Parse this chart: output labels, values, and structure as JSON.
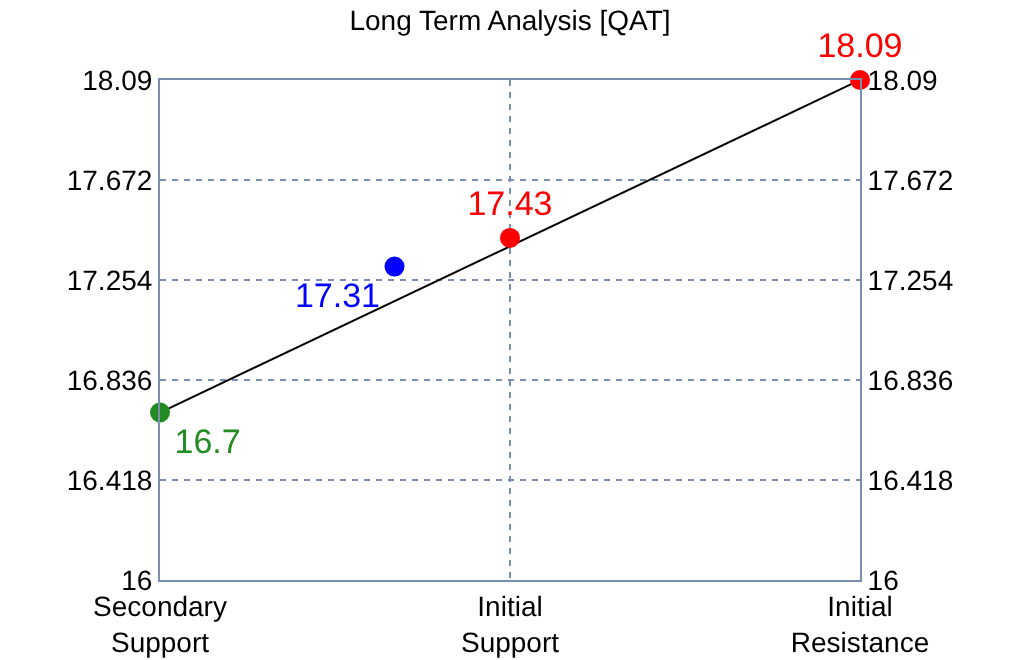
{
  "chart_data": {
    "type": "line",
    "title": "Long Term Analysis [QAT]",
    "categories": [
      "Secondary\nSupport",
      "Initial\nSupport",
      "Initial\nResistance"
    ],
    "ylim": [
      16,
      18.09
    ],
    "yticks": [
      16,
      16.418,
      16.836,
      17.254,
      17.672,
      18.09
    ],
    "y2lim": [
      16,
      18.09
    ],
    "y2ticks": [
      16,
      16.418,
      16.836,
      17.254,
      17.672,
      18.09
    ],
    "grid": true,
    "series": [
      {
        "type": "line",
        "color": "#000000",
        "values": [
          16.7,
          null,
          18.09
        ],
        "marker": "none"
      },
      {
        "type": "scatter",
        "color": "#228b22",
        "values": [
          16.7,
          null,
          null
        ],
        "value_labels": [
          "16.7",
          null,
          null
        ],
        "marker": "circle"
      },
      {
        "type": "scatter",
        "color": "#0000ff",
        "values": [
          null,
          17.31,
          null
        ],
        "value_labels": [
          null,
          "17.31",
          null
        ],
        "marker": "circle"
      },
      {
        "type": "scatter",
        "color": "#ff0000",
        "values": [
          null,
          17.43,
          18.09
        ],
        "value_labels": [
          null,
          "17.43",
          "18.09"
        ],
        "marker": "circle"
      }
    ]
  }
}
